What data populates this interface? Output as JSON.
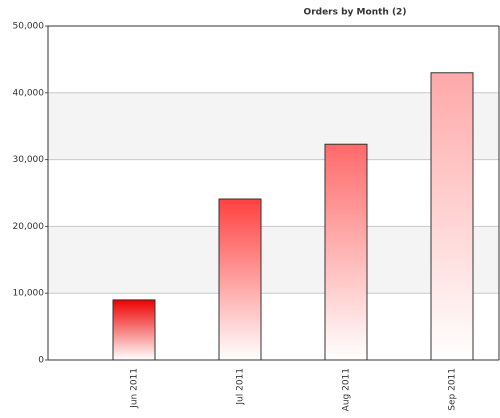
{
  "chart_data": {
    "type": "bar",
    "title": "Orders by Month  (2)",
    "categories": [
      "Jun 2011",
      "Jul 2011",
      "Aug 2011",
      "Sep 2011"
    ],
    "values": [
      9000,
      24100,
      32300,
      43000
    ],
    "colors": [
      "#ee0000",
      "#ff4040",
      "#ff6a6a",
      "#ffa8a8"
    ],
    "ylim": [
      0,
      50000
    ],
    "yticks": [
      0,
      {
        "value": 10000,
        "label": "10,000"
      },
      {
        "value": 20000,
        "label": "20,000"
      },
      {
        "value": 30000,
        "label": "30,000"
      },
      {
        "value": 40000,
        "label": "40,000"
      },
      {
        "value": 50000,
        "label": "50,000"
      }
    ],
    "grid": true
  }
}
